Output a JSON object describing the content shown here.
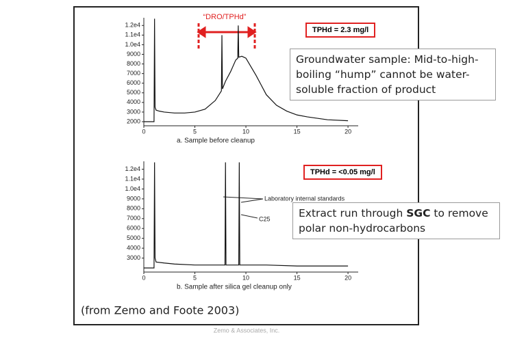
{
  "chart_data": [
    {
      "type": "line",
      "caption": "a.   Sample before cleanup",
      "range_label": "“DRO/TPHd”",
      "result_label": "TPHd = 2.3 mg/l",
      "note": [
        "Groundwater sample: Mid-to-high-boiling “hump” cannot be water-soluble fraction of product"
      ],
      "x": [
        0,
        1,
        1.05,
        1.1,
        1.2,
        1.5,
        2,
        3,
        4,
        5,
        6,
        7,
        7.6,
        7.65,
        7.7,
        8,
        8.5,
        9,
        9.2,
        9.25,
        9.3,
        9.6,
        10,
        11,
        12,
        13,
        14,
        15,
        16,
        18,
        20
      ],
      "series": [
        {
          "color": "#111111",
          "values": [
            2000,
            2000,
            12700,
            3500,
            3200,
            3100,
            3000,
            2900,
            2900,
            3000,
            3300,
            4200,
            5200,
            11000,
            5400,
            6200,
            7200,
            8400,
            8600,
            12000,
            8700,
            8800,
            8600,
            6800,
            4800,
            3700,
            3100,
            2700,
            2500,
            2200,
            2100
          ]
        }
      ],
      "xlim": [
        0,
        21
      ],
      "xticks": [
        0,
        5,
        10,
        15,
        20
      ],
      "ylim": [
        2000,
        12800
      ],
      "yticks": [
        {
          "value": 12000,
          "label": "1.2e4"
        },
        {
          "value": 11000,
          "label": "1.1e4"
        },
        {
          "value": 10000,
          "label": "1.0e4"
        },
        9000,
        8000,
        7000,
        6000,
        5000,
        4000,
        3000,
        2000
      ]
    },
    {
      "type": "line",
      "caption": "b.   Sample after silica gel cleanup only",
      "result_label": "TPHd = <0.05 mg/l",
      "standards_label": "Laboratory internal standards",
      "peak_label": "C25",
      "note": [
        "Extract run through ",
        "SGC",
        " to remove polar non-hydrocarbons"
      ],
      "x": [
        0,
        1,
        1.05,
        1.1,
        1.2,
        2,
        3,
        5,
        7,
        7.95,
        8,
        8.05,
        9,
        9.3,
        9.35,
        9.4,
        12,
        15,
        20
      ],
      "series": [
        {
          "color": "#111111",
          "values": [
            2000,
            2000,
            12700,
            3000,
            2600,
            2500,
            2400,
            2300,
            2300,
            2300,
            12700,
            2300,
            2300,
            2300,
            12700,
            2300,
            2300,
            2200,
            2200
          ]
        }
      ],
      "xlim": [
        0,
        21
      ],
      "xticks": [
        0,
        5,
        10,
        15,
        20
      ],
      "ylim": [
        2000,
        12800
      ],
      "yticks": [
        {
          "value": 12000,
          "label": "1.2e4"
        },
        {
          "value": 11000,
          "label": "1.1e4"
        },
        {
          "value": 10000,
          "label": "1.0e4"
        },
        9000,
        8000,
        7000,
        6000,
        5000,
        4000,
        3000
      ]
    }
  ],
  "slide": {
    "source": "(from Zemo and Foote 2003)",
    "footer": "Zemo & Associates, Inc."
  }
}
